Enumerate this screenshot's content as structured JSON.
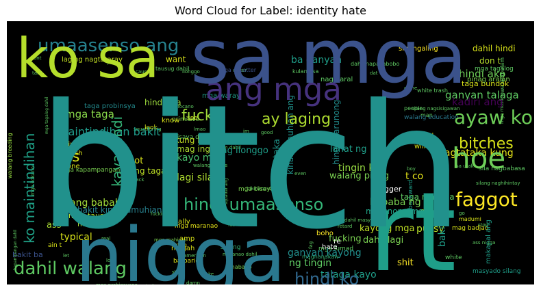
{
  "chart_data": {
    "type": "wordcloud",
    "title": "Word Cloud for Label: identity hate",
    "background": "#000000",
    "words": [
      {
        "text": "bitch",
        "weight": 1.0,
        "color": "#21918c"
      },
      {
        "text": "nigga",
        "weight": 0.66,
        "color": "#2a788e"
      },
      {
        "text": "rt",
        "weight": 0.66,
        "color": "#1f9e89"
      },
      {
        "text": "sa mga",
        "weight": 0.62,
        "color": "#3b528b"
      },
      {
        "text": "ko sa",
        "weight": 0.47,
        "color": "#b5de2b"
      },
      {
        "text": "ang mga",
        "weight": 0.25,
        "color": "#46327e"
      },
      {
        "text": "hoe",
        "weight": 0.24,
        "color": "#6ece58"
      },
      {
        "text": "faggot",
        "weight": 0.15,
        "color": "#fde725"
      },
      {
        "text": "ayaw ko",
        "weight": 0.15,
        "color": "#6ece58"
      },
      {
        "text": "umaasenso ang",
        "weight": 0.13,
        "color": "#26828e"
      },
      {
        "text": "dahil walang",
        "weight": 0.13,
        "color": "#5ec962"
      },
      {
        "text": "hindi umaasenso",
        "weight": 0.12,
        "color": "#35b779"
      },
      {
        "text": "hindi ko",
        "weight": 0.12,
        "color": "#31688e"
      },
      {
        "text": "bitches",
        "weight": 0.11,
        "color": "#d8e219"
      },
      {
        "text": "fuck",
        "weight": 0.11,
        "color": "#9fda3a"
      },
      {
        "text": "ay laging",
        "weight": 0.11,
        "color": "#addc30"
      },
      {
        "text": "ko maintindihan",
        "weight": 0.1,
        "color": "#1fa187"
      },
      {
        "text": "kaya hindi",
        "weight": 0.1,
        "color": "#35b779"
      },
      {
        "text": "maintindihan bakit",
        "weight": 0.07,
        "color": "#1f9a8a"
      },
      {
        "text": "mga taga",
        "weight": 0.07,
        "color": "#86d549"
      },
      {
        "text": "hindi ako",
        "weight": 0.07,
        "color": "#6ece58"
      },
      {
        "text": "ganyan talaga",
        "weight": 0.07,
        "color": "#5ec962"
      },
      {
        "text": "kadiri ang",
        "weight": 0.07,
        "color": "#440154"
      },
      {
        "text": "ba ganyan",
        "weight": 0.06,
        "color": "#1f9e89"
      },
      {
        "text": "nagtataka kung",
        "weight": 0.06,
        "color": "#e5e419"
      },
      {
        "text": "bakit ang",
        "weight": 0.06,
        "color": "#1f9e89"
      },
      {
        "text": "ang bababa",
        "weight": 0.06,
        "color": "#a0da39"
      },
      {
        "text": "bababa ng",
        "weight": 0.06,
        "color": "#7ad151"
      },
      {
        "text": "ganyan kayong",
        "weight": 0.06,
        "color": "#218e8d"
      },
      {
        "text": "talaga kayo",
        "weight": 0.06,
        "color": "#1f9e89"
      },
      {
        "text": "ng tingin",
        "weight": 0.06,
        "color": "#5ec962"
      },
      {
        "text": "kayo mga",
        "weight": 0.06,
        "color": "#4ac16d"
      },
      {
        "text": "tingin ko",
        "weight": 0.06,
        "color": "#95d840"
      },
      {
        "text": "lagi silang",
        "weight": 0.05,
        "color": "#addc30"
      },
      {
        "text": "ako nagtataka",
        "weight": 0.05,
        "color": "#1f968b"
      },
      {
        "text": "kinamumuhian ang",
        "weight": 0.05,
        "color": "#20928c"
      },
      {
        "text": "mag ilonggo",
        "weight": 0.05,
        "color": "#1f9e89"
      },
      {
        "text": "lahat ng",
        "weight": 0.05,
        "color": "#1f9e89"
      },
      {
        "text": "walang pinag",
        "weight": 0.05,
        "color": "#7ad151"
      },
      {
        "text": "kung bakit",
        "weight": 0.04,
        "color": "#c2df23"
      },
      {
        "text": "mag ingles",
        "weight": 0.04,
        "color": "#addc30"
      },
      {
        "text": "bakit kinamumuhian",
        "weight": 0.04,
        "color": "#27808e"
      },
      {
        "text": "hindi marunong",
        "weight": 0.04,
        "color": "#228c8d"
      },
      {
        "text": "marunong mag",
        "weight": 0.04,
        "color": "#20a386"
      },
      {
        "text": "kayong mga",
        "weight": 0.05,
        "color": "#c0df25"
      },
      {
        "text": "dahil lagi",
        "weight": 0.04,
        "color": "#7ad151"
      },
      {
        "text": "ang taga",
        "weight": 0.04,
        "color": "#bddf26"
      },
      {
        "text": "taga maynila",
        "weight": 0.04,
        "color": "#5ec962"
      },
      {
        "text": "fucking",
        "weight": 0.04,
        "color": "#7ad151"
      },
      {
        "text": "pussy",
        "weight": 0.04,
        "color": "#b5de2b"
      },
      {
        "text": "nigger",
        "weight": 0.03,
        "color": "#ffffff"
      },
      {
        "text": "t co",
        "weight": 0.04,
        "color": "#e5e419"
      },
      {
        "text": "shit",
        "weight": 0.04,
        "color": "#fde725"
      },
      {
        "text": "mga tausug",
        "weight": 0.03,
        "color": "#b5de2b"
      },
      {
        "text": "typical",
        "weight": 0.04,
        "color": "#d8e219"
      },
      {
        "text": "maingay",
        "weight": 0.03,
        "color": "#a8db34"
      },
      {
        "text": "ass",
        "weight": 0.04,
        "color": "#a8db34"
      },
      {
        "text": "got",
        "weight": 0.04,
        "color": "#d8e219"
      },
      {
        "text": "s",
        "weight": 0.06,
        "color": "#d8e219"
      },
      {
        "text": "hindi sila",
        "weight": 0.03,
        "color": "#9bd93c"
      },
      {
        "text": "taga probinsya",
        "weight": 0.03,
        "color": "#238a8d"
      },
      {
        "text": "walang breeding",
        "weight": 0.02,
        "color": "#95d840"
      },
      {
        "text": "mga squatter",
        "weight": 0.02,
        "color": "#3b528b"
      },
      {
        "text": "sinungaling",
        "weight": 0.02,
        "color": "#fde725"
      },
      {
        "text": "dahil hindi",
        "weight": 0.02,
        "color": "#d8e219"
      },
      {
        "text": "don t",
        "weight": 0.03,
        "color": "#b5de2b"
      },
      {
        "text": "want",
        "weight": 0.03,
        "color": "#d8e219"
      },
      {
        "text": "laging nagtataray",
        "weight": 0.02,
        "color": "#c2df23"
      },
      {
        "text": "nag aaral",
        "weight": 0.02,
        "color": "#5ec962"
      },
      {
        "text": "taga bundok",
        "weight": 0.02,
        "color": "#d8e219"
      },
      {
        "text": "mga waray",
        "weight": 0.02,
        "color": "#1f9e89"
      },
      {
        "text": "walang education",
        "weight": 0.02,
        "color": "#2a788e"
      },
      {
        "text": "primitive",
        "weight": 0.02,
        "color": "#7ad151"
      },
      {
        "text": "bisaya dahil",
        "weight": 0.02,
        "color": "#5ec962"
      },
      {
        "text": "mga kapampangan",
        "weight": 0.02,
        "color": "#7ad151"
      },
      {
        "text": "mga bisaya",
        "weight": 0.02,
        "color": "#7ad151"
      },
      {
        "text": "sila nagbabasa",
        "weight": 0.02,
        "color": "#5ec962"
      },
      {
        "text": "backward",
        "weight": 0.02,
        "color": "#1f9e89"
      },
      {
        "text": "mahirap",
        "weight": 0.02,
        "color": "#b5de2b"
      },
      {
        "text": "mga mahirap",
        "weight": 0.02,
        "color": "#7ad151"
      },
      {
        "text": "mga maranao",
        "weight": 0.02,
        "color": "#e5e419"
      },
      {
        "text": "mga lumad",
        "weight": 0.02,
        "color": "#5ec962"
      },
      {
        "text": "magnanakaw",
        "weight": 0.02,
        "color": "#35b779"
      },
      {
        "text": "boho",
        "weight": 0.02,
        "color": "#fde725"
      },
      {
        "text": "hate",
        "weight": 0.02,
        "color": "#ffffff"
      },
      {
        "text": "re",
        "weight": 0.02,
        "color": "#ffffff"
      },
      {
        "text": "niggah",
        "weight": 0.02,
        "color": "#d8e219"
      },
      {
        "text": "amp",
        "weight": 0.02,
        "color": "#d8e219"
      },
      {
        "text": "barbaric",
        "weight": 0.02,
        "color": "#d8e219"
      },
      {
        "text": "really",
        "weight": 0.02,
        "color": "#d8e219"
      },
      {
        "text": "little",
        "weight": 0.02,
        "color": "#d8e219"
      },
      {
        "text": "white",
        "weight": 0.02,
        "color": "#5ec962"
      },
      {
        "text": "mabaho",
        "weight": 0.02,
        "color": "#7ad151"
      },
      {
        "text": "sila ng",
        "weight": 0.02,
        "color": "#35b779"
      },
      {
        "text": "mag badjao",
        "weight": 0.02,
        "color": "#d8e219"
      },
      {
        "text": "madumi",
        "weight": 0.02,
        "color": "#d8e219"
      },
      {
        "text": "makapal ang",
        "weight": 0.02,
        "color": "#1f9e89"
      },
      {
        "text": "masyado silang",
        "weight": 0.02,
        "color": "#1f9e89"
      },
      {
        "text": "bakit ba",
        "weight": 0.03,
        "color": "#3b528b"
      },
      {
        "text": "look",
        "weight": 0.02,
        "color": "#d8e219"
      },
      {
        "text": "girl",
        "weight": 0.02,
        "color": "#d8e219"
      },
      {
        "text": "trash",
        "weight": 0.02,
        "color": "#d8e219"
      },
      {
        "text": "one",
        "weight": 0.02,
        "color": "#d8e219"
      },
      {
        "text": "will",
        "weight": 0.02,
        "color": "#d8e219"
      },
      {
        "text": "tamad",
        "weight": 0.02,
        "color": "#d8e219"
      },
      {
        "text": "know",
        "weight": 0.02,
        "color": "#d8e219"
      },
      {
        "text": "see",
        "weight": 0.02,
        "color": "#d8e219"
      },
      {
        "text": "ain t",
        "weight": 0.02,
        "color": "#d8e219"
      },
      {
        "text": "pinag aralan",
        "weight": 0.02,
        "color": "#7ad151"
      },
      {
        "text": "mga tagalog",
        "weight": 0.02,
        "color": "#5ec962"
      },
      {
        "text": "dahil napakabobo",
        "weight": 0.01,
        "color": "#5ec962"
      },
      {
        "text": "tausug dahil",
        "weight": 0.01,
        "color": "#5ec962"
      },
      {
        "text": "white trash",
        "weight": 0.01,
        "color": "#5ec962"
      },
      {
        "text": "silang nagsisigawan",
        "weight": 0.01,
        "color": "#5ec962"
      },
      {
        "text": "walang alam",
        "weight": 0.01,
        "color": "#5ec962"
      },
      {
        "text": "kulang sa",
        "weight": 0.01,
        "color": "#5ec962"
      },
      {
        "text": "people",
        "weight": 0.01,
        "color": "#5ec962"
      },
      {
        "text": "man",
        "weight": 0.01,
        "color": "#5ec962"
      },
      {
        "text": "squatter ng",
        "weight": 0.01,
        "color": "#5ec962"
      },
      {
        "text": "muslim dahil",
        "weight": 0.01,
        "color": "#5ec962"
      },
      {
        "text": "bikolano dahil",
        "weight": 0.01,
        "color": "#5ec962"
      },
      {
        "text": "sa utak",
        "weight": 0.01,
        "color": "#5ec962"
      },
      {
        "text": "silang naghihintay",
        "weight": 0.01,
        "color": "#5ec962"
      },
      {
        "text": "dahil masyado",
        "weight": 0.01,
        "color": "#5ec962"
      },
      {
        "text": "fat",
        "weight": 0.01,
        "color": "#5ec962"
      },
      {
        "text": "american",
        "weight": 0.01,
        "color": "#5ec962"
      },
      {
        "text": "real",
        "weight": 0.01,
        "color": "#5ec962"
      },
      {
        "text": "love",
        "weight": 0.01,
        "color": "#5ec962"
      },
      {
        "text": "still",
        "weight": 0.01,
        "color": "#5ec962"
      },
      {
        "text": "maranao dahil",
        "weight": 0.01,
        "color": "#5ec962"
      },
      {
        "text": "mga probinsyano",
        "weight": 0.01,
        "color": "#5ec962"
      },
      {
        "text": "mga indigenous",
        "weight": 0.01,
        "color": "#5ec962"
      },
      {
        "text": "mga mugindanao",
        "weight": 0.01,
        "color": "#5ec962"
      },
      {
        "text": "kapampangan dahil",
        "weight": 0.01,
        "color": "#5ec962"
      },
      {
        "text": "mga ilokano",
        "weight": 0.01,
        "color": "#5ec962"
      },
      {
        "text": "cunt",
        "weight": 0.01,
        "color": "#5ec962"
      },
      {
        "text": "yo",
        "weight": 0.01,
        "color": "#5ec962"
      },
      {
        "text": "ilonggo",
        "weight": 0.01,
        "color": "#5ec962"
      },
      {
        "text": "queer",
        "weight": 0.01,
        "color": "#5ec962"
      },
      {
        "text": "dat",
        "weight": 0.01,
        "color": "#5ec962"
      },
      {
        "text": "come",
        "weight": 0.01,
        "color": "#5ec962"
      },
      {
        "text": "cause",
        "weight": 0.01,
        "color": "#5ec962"
      },
      {
        "text": "talk",
        "weight": 0.01,
        "color": "#5ec962"
      },
      {
        "text": "stop",
        "weight": 0.01,
        "color": "#5ec962"
      },
      {
        "text": "ass nigga",
        "weight": 0.01,
        "color": "#5ec962"
      },
      {
        "text": "fag",
        "weight": 0.01,
        "color": "#5ec962"
      },
      {
        "text": "let",
        "weight": 0.01,
        "color": "#5ec962"
      },
      {
        "text": "kill",
        "weight": 0.01,
        "color": "#5ec962"
      },
      {
        "text": "make",
        "weight": 0.01,
        "color": "#5ec962"
      },
      {
        "text": "damn",
        "weight": 0.01,
        "color": "#5ec962"
      },
      {
        "text": "lmao",
        "weight": 0.01,
        "color": "#5ec962"
      },
      {
        "text": "im",
        "weight": 0.01,
        "color": "#5ec962"
      },
      {
        "text": "even",
        "weight": 0.01,
        "color": "#5ec962"
      },
      {
        "text": "boy",
        "weight": 0.01,
        "color": "#5ec962"
      },
      {
        "text": "go",
        "weight": 0.01,
        "color": "#5ec962"
      },
      {
        "text": "black",
        "weight": 0.01,
        "color": "#5ec962"
      },
      {
        "text": "retard",
        "weight": 0.01,
        "color": "#5ec962"
      },
      {
        "text": "fuckin",
        "weight": 0.01,
        "color": "#5ec962"
      },
      {
        "text": "good",
        "weight": 0.01,
        "color": "#5ec962"
      },
      {
        "text": "walang values",
        "weight": 0.01,
        "color": "#5ec962"
      },
      {
        "text": "mga muslim",
        "weight": 0.01,
        "color": "#5ec962"
      },
      {
        "text": "mga ilocano",
        "weight": 0.01,
        "color": "#5ec962"
      },
      {
        "text": "squatter ang",
        "weight": 0.01,
        "color": "#5ec962"
      },
      {
        "text": "mga tagalog dahil",
        "weight": 0.01,
        "color": "#5ec962"
      }
    ]
  }
}
